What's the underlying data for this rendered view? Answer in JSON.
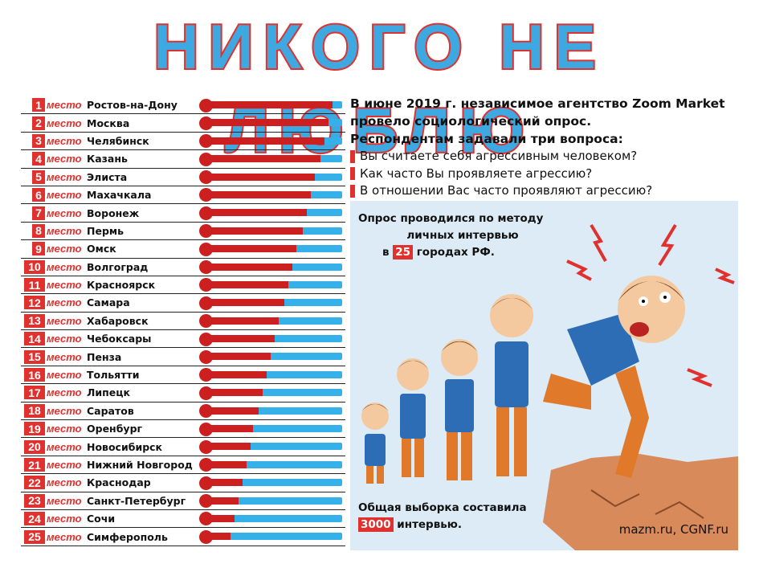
{
  "title": "НИКОГО НЕ ЛЮБЛЮ",
  "place_word": "место",
  "chart_data": {
    "type": "bar",
    "categories": [
      "Ростов-на-Дону",
      "Москва",
      "Челябинск",
      "Казань",
      "Элиста",
      "Махачкала",
      "Воронеж",
      "Пермь",
      "Омск",
      "Волгоград",
      "Красноярск",
      "Самара",
      "Хабаровск",
      "Чебоксары",
      "Пенза",
      "Тольятти",
      "Липецк",
      "Саратов",
      "Оренбург",
      "Новосибирск",
      "Нижний Новгород",
      "Краснодар",
      "Санкт-Петербург",
      "Сочи",
      "Симферополь"
    ],
    "ranks": [
      "1",
      "2",
      "3",
      "4",
      "5",
      "6",
      "7",
      "8",
      "9",
      "10",
      "11",
      "12",
      "13",
      "14",
      "15",
      "16",
      "17",
      "18",
      "19",
      "20",
      "21",
      "22",
      "23",
      "24",
      "25"
    ],
    "values": [
      0.93,
      0.9,
      0.87,
      0.84,
      0.8,
      0.77,
      0.74,
      0.71,
      0.66,
      0.63,
      0.6,
      0.57,
      0.53,
      0.5,
      0.47,
      0.44,
      0.41,
      0.38,
      0.34,
      0.32,
      0.29,
      0.26,
      0.23,
      0.2,
      0.17
    ],
    "colors": {
      "fill": "#cc1f1f",
      "track": "#35b0e8"
    }
  },
  "intro": {
    "lines": [
      "В июне 2019 г. независимое агентство Zoom Market",
      "провело социологический опрос.",
      "Респондентам задавали три вопроса:"
    ],
    "questions": [
      "Вы считаете себя агрессивным человеком?",
      "Как часто Вы проявляете агрессию?",
      "В отношении Вас часто проявляют агрессию?"
    ]
  },
  "method": {
    "line1": "Опрос проводился по методу",
    "line2": "личных интервью",
    "prefix": "в",
    "number": "25",
    "suffix": "городах РФ."
  },
  "sample": {
    "line1": "Общая выборка составила",
    "number": "3000",
    "suffix": "интервью."
  },
  "credit": "mazm.ru, CGNF.ru",
  "colors": {
    "accent_red": "#e0312e",
    "accent_blue": "#3ea8e0",
    "panel_bg": "#dcebf5"
  }
}
